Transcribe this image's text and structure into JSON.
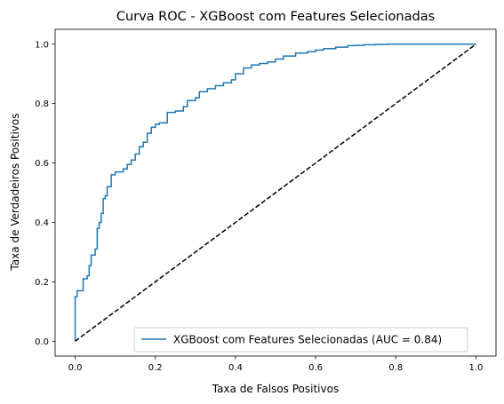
{
  "chart_data": {
    "type": "line",
    "title": "Curva ROC - XGBoost com Features Selecionadas",
    "xlabel": "Taxa de Falsos Positivos",
    "ylabel": "Taxa de Verdadeiros Positivos",
    "xlim": [
      -0.05,
      1.05
    ],
    "ylim": [
      -0.05,
      1.05
    ],
    "xticks": [
      0.0,
      0.2,
      0.4,
      0.6,
      0.8,
      1.0
    ],
    "yticks": [
      0.0,
      0.2,
      0.4,
      0.6,
      0.8,
      1.0
    ],
    "xtick_labels": [
      "0.0",
      "0.2",
      "0.4",
      "0.6",
      "0.8",
      "1.0"
    ],
    "ytick_labels": [
      "0.0",
      "0.2",
      "0.4",
      "0.6",
      "0.8",
      "1.0"
    ],
    "grid": false,
    "legend_position": "lower-right",
    "series": [
      {
        "name": "XGBoost com Features Selecionadas (AUC = 0.84)",
        "color": "#1f77b4",
        "style": "step",
        "x": [
          0.0,
          0.0,
          0.005,
          0.005,
          0.02,
          0.02,
          0.03,
          0.03,
          0.035,
          0.035,
          0.04,
          0.04,
          0.05,
          0.05,
          0.055,
          0.055,
          0.06,
          0.06,
          0.065,
          0.065,
          0.07,
          0.07,
          0.075,
          0.075,
          0.08,
          0.08,
          0.09,
          0.09,
          0.1,
          0.1,
          0.12,
          0.12,
          0.13,
          0.13,
          0.14,
          0.14,
          0.15,
          0.15,
          0.16,
          0.16,
          0.17,
          0.17,
          0.18,
          0.18,
          0.19,
          0.19,
          0.2,
          0.2,
          0.21,
          0.21,
          0.23,
          0.23,
          0.25,
          0.25,
          0.27,
          0.27,
          0.28,
          0.28,
          0.3,
          0.3,
          0.31,
          0.31,
          0.33,
          0.33,
          0.35,
          0.35,
          0.37,
          0.37,
          0.39,
          0.39,
          0.4,
          0.4,
          0.42,
          0.42,
          0.44,
          0.44,
          0.46,
          0.46,
          0.48,
          0.48,
          0.5,
          0.5,
          0.52,
          0.52,
          0.55,
          0.55,
          0.58,
          0.58,
          0.6,
          0.6,
          0.62,
          0.62,
          0.65,
          0.65,
          0.68,
          0.68,
          0.7,
          0.7,
          0.72,
          0.72,
          0.75,
          0.75,
          0.78,
          0.78,
          0.8,
          0.8,
          1.0
        ],
        "y": [
          0.0,
          0.15,
          0.15,
          0.17,
          0.17,
          0.21,
          0.21,
          0.22,
          0.22,
          0.255,
          0.255,
          0.29,
          0.29,
          0.31,
          0.31,
          0.38,
          0.38,
          0.4,
          0.4,
          0.43,
          0.43,
          0.48,
          0.48,
          0.49,
          0.49,
          0.52,
          0.52,
          0.56,
          0.56,
          0.57,
          0.57,
          0.58,
          0.58,
          0.595,
          0.595,
          0.61,
          0.61,
          0.63,
          0.63,
          0.655,
          0.655,
          0.67,
          0.67,
          0.7,
          0.7,
          0.72,
          0.72,
          0.73,
          0.73,
          0.735,
          0.735,
          0.77,
          0.77,
          0.775,
          0.775,
          0.79,
          0.79,
          0.81,
          0.81,
          0.82,
          0.82,
          0.84,
          0.84,
          0.85,
          0.85,
          0.86,
          0.86,
          0.87,
          0.87,
          0.88,
          0.88,
          0.9,
          0.9,
          0.92,
          0.92,
          0.93,
          0.93,
          0.935,
          0.935,
          0.94,
          0.94,
          0.95,
          0.95,
          0.96,
          0.96,
          0.97,
          0.97,
          0.975,
          0.975,
          0.98,
          0.98,
          0.985,
          0.985,
          0.99,
          0.99,
          0.995,
          0.995,
          0.996,
          0.996,
          0.998,
          0.998,
          0.999,
          0.999,
          1.0,
          1.0,
          1.0,
          1.0
        ]
      },
      {
        "color": "#000000",
        "style": "dashed",
        "x": [
          0.0,
          1.0
        ],
        "y": [
          0.0,
          1.0
        ]
      }
    ]
  }
}
